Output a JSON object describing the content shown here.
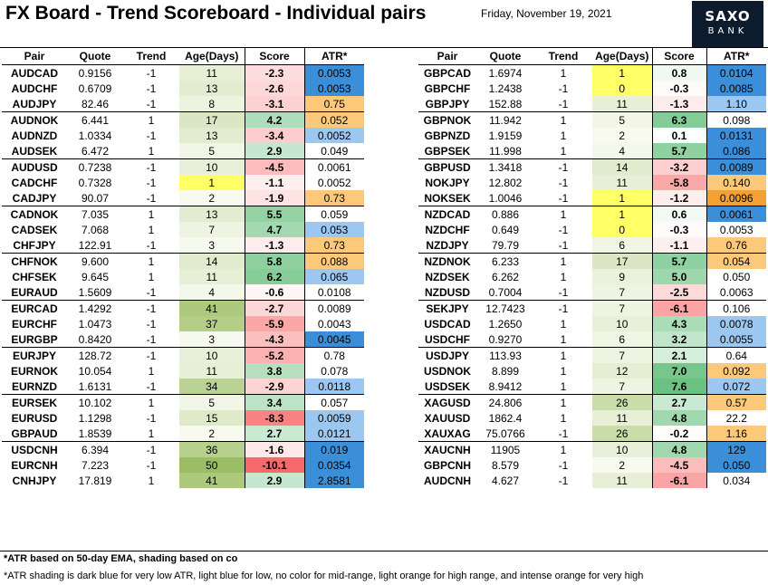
{
  "title": "FX Board - Trend Scoreboard - Individual pairs",
  "date": "Friday, November 19, 2021",
  "logo": {
    "line1": "SAXO",
    "line2": "BANK"
  },
  "headers": [
    "Pair",
    "Quote",
    "Trend",
    "Age(Days)",
    "Score",
    "ATR*"
  ],
  "left": [
    [
      "AUDCAD",
      "0.9156",
      "-1",
      "11",
      "-2.3",
      "0.0053"
    ],
    [
      "AUDCHF",
      "0.6709",
      "-1",
      "13",
      "-2.6",
      "0.0053"
    ],
    [
      "AUDJPY",
      "82.46",
      "-1",
      "8",
      "-3.1",
      "0.75"
    ],
    [
      "AUDNOK",
      "6.441",
      "1",
      "17",
      "4.2",
      "0.052"
    ],
    [
      "AUDNZD",
      "1.0334",
      "-1",
      "13",
      "-3.4",
      "0.0052"
    ],
    [
      "AUDSEK",
      "6.472",
      "1",
      "5",
      "2.9",
      "0.049"
    ],
    [
      "AUDUSD",
      "0.7238",
      "-1",
      "10",
      "-4.5",
      "0.0061"
    ],
    [
      "CADCHF",
      "0.7328",
      "-1",
      "1",
      "-1.1",
      "0.0052"
    ],
    [
      "CADJPY",
      "90.07",
      "-1",
      "2",
      "-1.9",
      "0.73"
    ],
    [
      "CADNOK",
      "7.035",
      "1",
      "13",
      "5.5",
      "0.059"
    ],
    [
      "CADSEK",
      "7.068",
      "1",
      "7",
      "4.7",
      "0.053"
    ],
    [
      "CHFJPY",
      "122.91",
      "-1",
      "3",
      "-1.3",
      "0.73"
    ],
    [
      "CHFNOK",
      "9.600",
      "1",
      "14",
      "5.8",
      "0.088"
    ],
    [
      "CHFSEK",
      "9.645",
      "1",
      "11",
      "6.2",
      "0.065"
    ],
    [
      "EURAUD",
      "1.5609",
      "-1",
      "4",
      "-0.6",
      "0.0108"
    ],
    [
      "EURCAD",
      "1.4292",
      "-1",
      "41",
      "-2.7",
      "0.0089"
    ],
    [
      "EURCHF",
      "1.0473",
      "-1",
      "37",
      "-5.9",
      "0.0043"
    ],
    [
      "EURGBP",
      "0.8420",
      "-1",
      "3",
      "-4.3",
      "0.0045"
    ],
    [
      "EURJPY",
      "128.72",
      "-1",
      "10",
      "-5.2",
      "0.78"
    ],
    [
      "EURNOK",
      "10.054",
      "1",
      "11",
      "3.8",
      "0.078"
    ],
    [
      "EURNZD",
      "1.6131",
      "-1",
      "34",
      "-2.9",
      "0.0118"
    ],
    [
      "EURSEK",
      "10.102",
      "1",
      "5",
      "3.4",
      "0.057"
    ],
    [
      "EURUSD",
      "1.1298",
      "-1",
      "15",
      "-8.3",
      "0.0059"
    ],
    [
      "GBPAUD",
      "1.8539",
      "1",
      "2",
      "2.7",
      "0.0121"
    ],
    [
      "USDCNH",
      "6.394",
      "-1",
      "36",
      "-1.6",
      "0.019"
    ],
    [
      "EURCNH",
      "7.223",
      "-1",
      "50",
      "-10.1",
      "0.0354"
    ],
    [
      "CNHJPY",
      "17.819",
      "1",
      "41",
      "2.9",
      "2.8581"
    ]
  ],
  "right": [
    [
      "GBPCAD",
      "1.6974",
      "1",
      "1",
      "0.8",
      "0.0104"
    ],
    [
      "GBPCHF",
      "1.2438",
      "-1",
      "0",
      "-0.3",
      "0.0085"
    ],
    [
      "GBPJPY",
      "152.88",
      "-1",
      "11",
      "-1.3",
      "1.10"
    ],
    [
      "GBPNOK",
      "11.942",
      "1",
      "5",
      "6.3",
      "0.098"
    ],
    [
      "GBPNZD",
      "1.9159",
      "1",
      "2",
      "0.1",
      "0.0131"
    ],
    [
      "GBPSEK",
      "11.998",
      "1",
      "4",
      "5.7",
      "0.086"
    ],
    [
      "GBPUSD",
      "1.3418",
      "-1",
      "14",
      "-3.2",
      "0.0089"
    ],
    [
      "NOKJPY",
      "12.802",
      "-1",
      "11",
      "-5.8",
      "0.140"
    ],
    [
      "NOKSEK",
      "1.0046",
      "-1",
      "1",
      "-1.2",
      "0.0096"
    ],
    [
      "NZDCAD",
      "0.886",
      "1",
      "1",
      "0.6",
      "0.0061"
    ],
    [
      "NZDCHF",
      "0.649",
      "-1",
      "0",
      "-0.3",
      "0.0053"
    ],
    [
      "NZDJPY",
      "79.79",
      "-1",
      "6",
      "-1.1",
      "0.76"
    ],
    [
      "NZDNOK",
      "6.233",
      "1",
      "17",
      "5.7",
      "0.054"
    ],
    [
      "NZDSEK",
      "6.262",
      "1",
      "9",
      "5.0",
      "0.050"
    ],
    [
      "NZDUSD",
      "0.7004",
      "-1",
      "7",
      "-2.5",
      "0.0063"
    ],
    [
      "SEKJPY",
      "12.7423",
      "-1",
      "7",
      "-6.1",
      "0.106"
    ],
    [
      "USDCAD",
      "1.2650",
      "1",
      "10",
      "4.3",
      "0.0078"
    ],
    [
      "USDCHF",
      "0.9270",
      "1",
      "6",
      "3.2",
      "0.0055"
    ],
    [
      "USDJPY",
      "113.93",
      "1",
      "7",
      "2.1",
      "0.64"
    ],
    [
      "USDNOK",
      "8.899",
      "1",
      "12",
      "7.0",
      "0.092"
    ],
    [
      "USDSEK",
      "8.9412",
      "1",
      "7",
      "7.6",
      "0.072"
    ],
    [
      "XAGUSD",
      "24.806",
      "1",
      "26",
      "2.7",
      "0.57"
    ],
    [
      "XAUUSD",
      "1862.4",
      "1",
      "11",
      "4.8",
      "22.2"
    ],
    [
      "XAUXAG",
      "75.0766",
      "-1",
      "26",
      "-0.2",
      "1.16"
    ],
    [
      "XAUCNH",
      "11905",
      "1",
      "10",
      "4.8",
      "129"
    ],
    [
      "GBPCNH",
      "8.579",
      "-1",
      "2",
      "-4.5",
      "0.050"
    ],
    [
      "AUDCNH",
      "4.627",
      "-1",
      "11",
      "-6.1",
      "0.034"
    ]
  ],
  "left_atr_shade": [
    "db",
    "db",
    "lo",
    "lo",
    "lb",
    "",
    "",
    "",
    "lo",
    "",
    "lb",
    "lo",
    "lo",
    "lb",
    "",
    "",
    "",
    "db",
    "",
    "",
    "lb",
    "",
    "lb",
    "lb",
    "db",
    "db",
    "db"
  ],
  "right_atr_shade": [
    "db",
    "db",
    "lb",
    "",
    "db",
    "db",
    "db",
    "lo",
    "io",
    "db",
    "",
    "lo",
    "lo",
    "",
    "",
    "",
    "lb",
    "lb",
    "",
    "lo",
    "lb",
    "lo",
    "",
    "lo",
    "db",
    "db",
    ""
  ],
  "shade_colors": {
    "db": "#3b8fd9",
    "lb": "#9cc7f0",
    "lo": "#fcc97a",
    "io": "#f4a032"
  },
  "notes": {
    "line1": "*ATR based on 50-day EMA, shading based on co",
    "line2": "*ATR shading is dark blue for very low ATR, light blue for low, no color for mid-range, light orange for high range, and intense orange for very high"
  }
}
